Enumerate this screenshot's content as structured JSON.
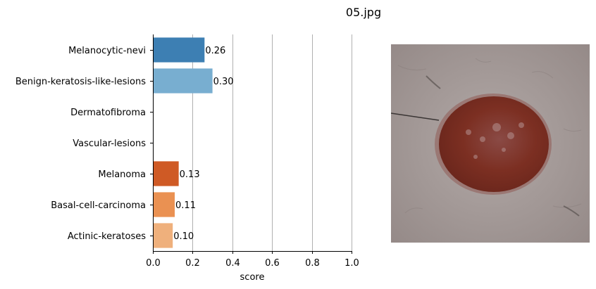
{
  "title": "05.jpg",
  "chart_data": {
    "type": "bar",
    "orientation": "horizontal",
    "categories": [
      "Melanocytic-nevi",
      "Benign-keratosis-like-lesions",
      "Dermatofibroma",
      "Vascular-lesions",
      "Melanoma",
      "Basal-cell-carcinoma",
      "Actinic-keratoses"
    ],
    "values": [
      0.26,
      0.3,
      0.0,
      0.0,
      0.13,
      0.11,
      0.1
    ],
    "value_labels": [
      "0.26",
      "0.30",
      "",
      "",
      "0.13",
      "0.11",
      "0.10"
    ],
    "colors": [
      "#3d7fb3",
      "#78aed0",
      "#ffffff",
      "#ffffff",
      "#cf5a25",
      "#ea9152",
      "#efb07c"
    ],
    "xlabel": "score",
    "ylabel": "",
    "xlim": [
      0,
      1.0
    ],
    "xticks": [
      0.0,
      0.2,
      0.4,
      0.6,
      0.8,
      1.0
    ],
    "xtick_labels": [
      "0.0",
      "0.2",
      "0.4",
      "0.6",
      "0.8",
      "1.0"
    ],
    "grid": "vertical"
  },
  "image": {
    "description_name": "skin-lesion-photo",
    "skin_color": "#a79e9c",
    "lesion_color": "#7c2f22",
    "lesion_light": "#a06e6c"
  }
}
